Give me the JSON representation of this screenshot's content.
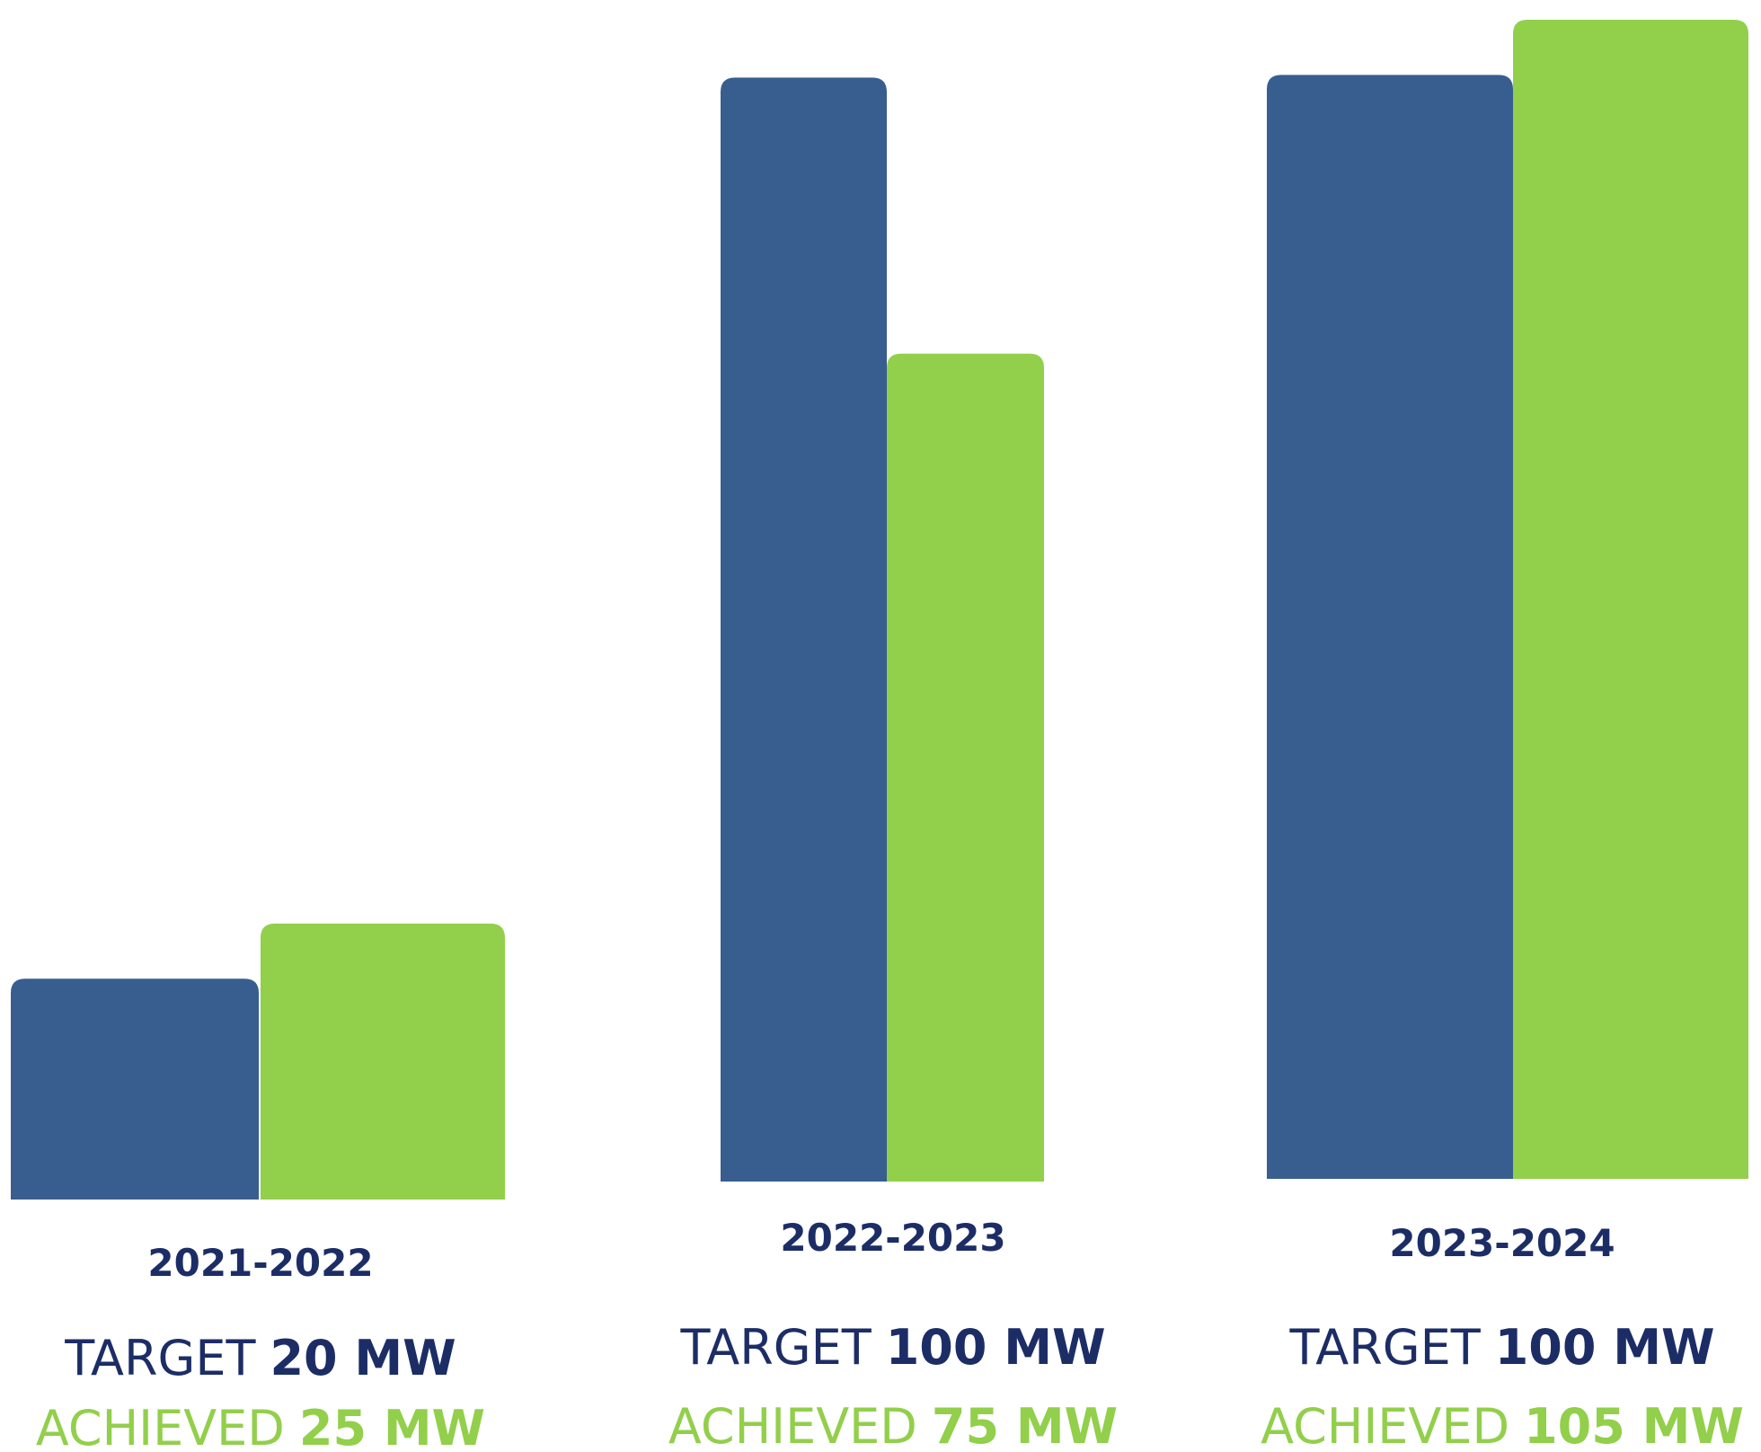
{
  "chart_data": {
    "type": "bar",
    "categories": [
      "2021-2022",
      "2022-2023",
      "2023-2024"
    ],
    "series": [
      {
        "name": "TARGET",
        "color": "#375e8f",
        "values": [
          20,
          100,
          100
        ],
        "value_labels": [
          "20 MW",
          "100 MW",
          "100 MW"
        ]
      },
      {
        "name": "ACHIEVED",
        "color": "#92cf4b",
        "values": [
          25,
          75,
          105
        ],
        "value_labels": [
          "25 MW",
          "75 MW",
          "105 MW"
        ]
      }
    ]
  }
}
